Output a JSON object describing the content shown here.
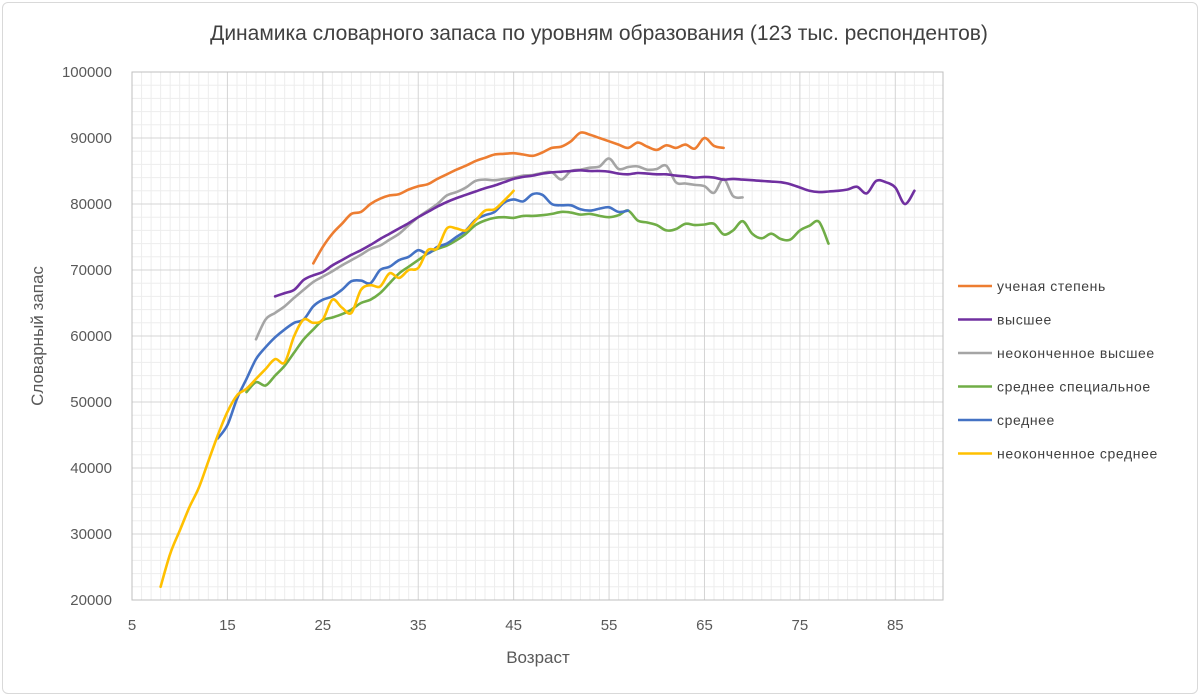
{
  "chart_data": {
    "type": "line",
    "title": "Динамика словарного запаса по уровням образования (123 тыс. респондентов)",
    "xlabel": "Возраст",
    "ylabel": "Словарный запас",
    "xlim": [
      5,
      90
    ],
    "ylim": [
      20000,
      100000
    ],
    "x_ticks": [
      5,
      15,
      25,
      35,
      45,
      55,
      65,
      75,
      85
    ],
    "y_ticks": [
      20000,
      30000,
      40000,
      50000,
      60000,
      70000,
      80000,
      90000,
      100000
    ],
    "grid": "on",
    "legend_position": "right",
    "series": [
      {
        "name": "ученая степень",
        "color": "#ed7d31",
        "points": [
          [
            24,
            71000
          ],
          [
            25,
            73500
          ],
          [
            26,
            75500
          ],
          [
            27,
            77000
          ],
          [
            28,
            78500
          ],
          [
            29,
            78800
          ],
          [
            30,
            80000
          ],
          [
            31,
            80800
          ],
          [
            32,
            81300
          ],
          [
            33,
            81500
          ],
          [
            34,
            82200
          ],
          [
            35,
            82700
          ],
          [
            36,
            83000
          ],
          [
            37,
            83800
          ],
          [
            38,
            84500
          ],
          [
            39,
            85200
          ],
          [
            40,
            85800
          ],
          [
            41,
            86500
          ],
          [
            42,
            87000
          ],
          [
            43,
            87500
          ],
          [
            44,
            87600
          ],
          [
            45,
            87700
          ],
          [
            46,
            87500
          ],
          [
            47,
            87300
          ],
          [
            48,
            87800
          ],
          [
            49,
            88500
          ],
          [
            50,
            88700
          ],
          [
            51,
            89500
          ],
          [
            52,
            90800
          ],
          [
            53,
            90500
          ],
          [
            54,
            90000
          ],
          [
            55,
            89500
          ],
          [
            56,
            89000
          ],
          [
            57,
            88500
          ],
          [
            58,
            89300
          ],
          [
            59,
            88700
          ],
          [
            60,
            88200
          ],
          [
            61,
            88900
          ],
          [
            62,
            88500
          ],
          [
            63,
            89000
          ],
          [
            64,
            88400
          ],
          [
            65,
            90000
          ],
          [
            66,
            88800
          ],
          [
            67,
            88500
          ]
        ]
      },
      {
        "name": "высшее",
        "color": "#7030a0",
        "points": [
          [
            20,
            66000
          ],
          [
            21,
            66500
          ],
          [
            22,
            67000
          ],
          [
            23,
            68500
          ],
          [
            24,
            69200
          ],
          [
            25,
            69700
          ],
          [
            26,
            70700
          ],
          [
            27,
            71500
          ],
          [
            28,
            72300
          ],
          [
            29,
            73000
          ],
          [
            30,
            73800
          ],
          [
            31,
            74700
          ],
          [
            32,
            75500
          ],
          [
            33,
            76300
          ],
          [
            34,
            77100
          ],
          [
            35,
            78000
          ],
          [
            36,
            78800
          ],
          [
            37,
            79600
          ],
          [
            38,
            80300
          ],
          [
            39,
            80900
          ],
          [
            40,
            81400
          ],
          [
            41,
            81900
          ],
          [
            42,
            82400
          ],
          [
            43,
            82800
          ],
          [
            44,
            83300
          ],
          [
            45,
            83800
          ],
          [
            46,
            84100
          ],
          [
            47,
            84300
          ],
          [
            48,
            84600
          ],
          [
            49,
            84800
          ],
          [
            50,
            84900
          ],
          [
            51,
            85000
          ],
          [
            52,
            85100
          ],
          [
            53,
            85000
          ],
          [
            54,
            85000
          ],
          [
            55,
            84900
          ],
          [
            56,
            84600
          ],
          [
            57,
            84500
          ],
          [
            58,
            84700
          ],
          [
            59,
            84600
          ],
          [
            60,
            84500
          ],
          [
            61,
            84500
          ],
          [
            62,
            84300
          ],
          [
            63,
            84200
          ],
          [
            64,
            84000
          ],
          [
            65,
            84100
          ],
          [
            66,
            84000
          ],
          [
            67,
            83700
          ],
          [
            68,
            83800
          ],
          [
            69,
            83700
          ],
          [
            70,
            83600
          ],
          [
            71,
            83500
          ],
          [
            72,
            83400
          ],
          [
            73,
            83300
          ],
          [
            74,
            83000
          ],
          [
            75,
            82500
          ],
          [
            76,
            82000
          ],
          [
            77,
            81800
          ],
          [
            78,
            81900
          ],
          [
            79,
            82000
          ],
          [
            80,
            82200
          ],
          [
            81,
            82600
          ],
          [
            82,
            81600
          ],
          [
            83,
            83500
          ],
          [
            84,
            83300
          ],
          [
            85,
            82500
          ],
          [
            86,
            80000
          ],
          [
            87,
            82000
          ]
        ]
      },
      {
        "name": "неоконченное высшее",
        "color": "#a5a5a5",
        "points": [
          [
            18,
            59500
          ],
          [
            19,
            62500
          ],
          [
            20,
            63500
          ],
          [
            21,
            64500
          ],
          [
            22,
            65800
          ],
          [
            23,
            67000
          ],
          [
            24,
            68200
          ],
          [
            25,
            69000
          ],
          [
            26,
            69800
          ],
          [
            27,
            70700
          ],
          [
            28,
            71500
          ],
          [
            29,
            72300
          ],
          [
            30,
            73200
          ],
          [
            31,
            73700
          ],
          [
            32,
            74600
          ],
          [
            33,
            75500
          ],
          [
            34,
            76800
          ],
          [
            35,
            78000
          ],
          [
            36,
            79000
          ],
          [
            37,
            80000
          ],
          [
            38,
            81300
          ],
          [
            39,
            81800
          ],
          [
            40,
            82500
          ],
          [
            41,
            83500
          ],
          [
            42,
            83700
          ],
          [
            43,
            83600
          ],
          [
            44,
            83800
          ],
          [
            45,
            84000
          ],
          [
            46,
            84300
          ],
          [
            47,
            84400
          ],
          [
            48,
            84700
          ],
          [
            49,
            84800
          ],
          [
            50,
            83700
          ],
          [
            51,
            85000
          ],
          [
            52,
            85200
          ],
          [
            53,
            85500
          ],
          [
            54,
            85700
          ],
          [
            55,
            86900
          ],
          [
            56,
            85300
          ],
          [
            57,
            85600
          ],
          [
            58,
            85700
          ],
          [
            59,
            85200
          ],
          [
            60,
            85300
          ],
          [
            61,
            85800
          ],
          [
            62,
            83300
          ],
          [
            63,
            83100
          ],
          [
            64,
            82900
          ],
          [
            65,
            82700
          ],
          [
            66,
            81700
          ],
          [
            67,
            83800
          ],
          [
            68,
            81200
          ],
          [
            69,
            81000
          ]
        ]
      },
      {
        "name": "среднее специальное",
        "color": "#70ad47",
        "points": [
          [
            17,
            51500
          ],
          [
            18,
            53000
          ],
          [
            19,
            52500
          ],
          [
            20,
            54000
          ],
          [
            21,
            55500
          ],
          [
            22,
            57500
          ],
          [
            23,
            59500
          ],
          [
            24,
            61000
          ],
          [
            25,
            62400
          ],
          [
            26,
            62800
          ],
          [
            27,
            63300
          ],
          [
            28,
            64000
          ],
          [
            29,
            65000
          ],
          [
            30,
            65500
          ],
          [
            31,
            66500
          ],
          [
            32,
            68000
          ],
          [
            33,
            69500
          ],
          [
            34,
            70500
          ],
          [
            35,
            71500
          ],
          [
            36,
            72500
          ],
          [
            37,
            73200
          ],
          [
            38,
            73700
          ],
          [
            39,
            74500
          ],
          [
            40,
            75500
          ],
          [
            41,
            76800
          ],
          [
            42,
            77500
          ],
          [
            43,
            77900
          ],
          [
            44,
            78000
          ],
          [
            45,
            77900
          ],
          [
            46,
            78200
          ],
          [
            47,
            78200
          ],
          [
            48,
            78300
          ],
          [
            49,
            78500
          ],
          [
            50,
            78800
          ],
          [
            51,
            78700
          ],
          [
            52,
            78400
          ],
          [
            53,
            78500
          ],
          [
            54,
            78200
          ],
          [
            55,
            78000
          ],
          [
            56,
            78300
          ],
          [
            57,
            79000
          ],
          [
            58,
            77500
          ],
          [
            59,
            77200
          ],
          [
            60,
            76800
          ],
          [
            61,
            76000
          ],
          [
            62,
            76200
          ],
          [
            63,
            77000
          ],
          [
            64,
            76800
          ],
          [
            65,
            76900
          ],
          [
            66,
            77000
          ],
          [
            67,
            75400
          ],
          [
            68,
            76000
          ],
          [
            69,
            77400
          ],
          [
            70,
            75500
          ],
          [
            71,
            74800
          ],
          [
            72,
            75500
          ],
          [
            73,
            74700
          ],
          [
            74,
            74600
          ],
          [
            75,
            76000
          ],
          [
            76,
            76700
          ],
          [
            77,
            77300
          ],
          [
            78,
            74000
          ]
        ]
      },
      {
        "name": "среднее",
        "color": "#4472c4",
        "points": [
          [
            14,
            44500
          ],
          [
            15,
            46500
          ],
          [
            16,
            50500
          ],
          [
            17,
            53500
          ],
          [
            18,
            56500
          ],
          [
            19,
            58300
          ],
          [
            20,
            59800
          ],
          [
            21,
            61000
          ],
          [
            22,
            62000
          ],
          [
            23,
            62500
          ],
          [
            24,
            64500
          ],
          [
            25,
            65500
          ],
          [
            26,
            66000
          ],
          [
            27,
            67000
          ],
          [
            28,
            68300
          ],
          [
            29,
            68400
          ],
          [
            30,
            68000
          ],
          [
            31,
            70000
          ],
          [
            32,
            70500
          ],
          [
            33,
            71500
          ],
          [
            34,
            72000
          ],
          [
            35,
            73000
          ],
          [
            36,
            72500
          ],
          [
            37,
            73500
          ],
          [
            38,
            74000
          ],
          [
            39,
            75000
          ],
          [
            40,
            76000
          ],
          [
            41,
            77600
          ],
          [
            42,
            78300
          ],
          [
            43,
            78800
          ],
          [
            44,
            80200
          ],
          [
            45,
            80700
          ],
          [
            46,
            80400
          ],
          [
            47,
            81500
          ],
          [
            48,
            81400
          ],
          [
            49,
            80000
          ],
          [
            50,
            79800
          ],
          [
            51,
            79800
          ],
          [
            52,
            79200
          ],
          [
            53,
            79000
          ],
          [
            54,
            79300
          ],
          [
            55,
            79500
          ],
          [
            56,
            78800
          ],
          [
            57,
            79000
          ]
        ]
      },
      {
        "name": "неоконченное среднее",
        "color": "#ffc000",
        "points": [
          [
            8,
            22000
          ],
          [
            9,
            27000
          ],
          [
            10,
            30500
          ],
          [
            11,
            34000
          ],
          [
            12,
            37000
          ],
          [
            13,
            41000
          ],
          [
            14,
            45000
          ],
          [
            15,
            48500
          ],
          [
            16,
            51000
          ],
          [
            17,
            52000
          ],
          [
            18,
            53500
          ],
          [
            19,
            55000
          ],
          [
            20,
            56500
          ],
          [
            21,
            56000
          ],
          [
            22,
            60000
          ],
          [
            23,
            62500
          ],
          [
            24,
            62000
          ],
          [
            25,
            62500
          ],
          [
            26,
            65500
          ],
          [
            27,
            64300
          ],
          [
            28,
            63500
          ],
          [
            29,
            67000
          ],
          [
            30,
            67700
          ],
          [
            31,
            67500
          ],
          [
            32,
            69500
          ],
          [
            33,
            68800
          ],
          [
            34,
            70000
          ],
          [
            35,
            70300
          ],
          [
            36,
            73000
          ],
          [
            37,
            73300
          ],
          [
            38,
            76300
          ],
          [
            39,
            76300
          ],
          [
            40,
            76000
          ],
          [
            41,
            77500
          ],
          [
            42,
            79000
          ],
          [
            43,
            79200
          ],
          [
            44,
            80500
          ],
          [
            45,
            82000
          ]
        ]
      }
    ]
  }
}
